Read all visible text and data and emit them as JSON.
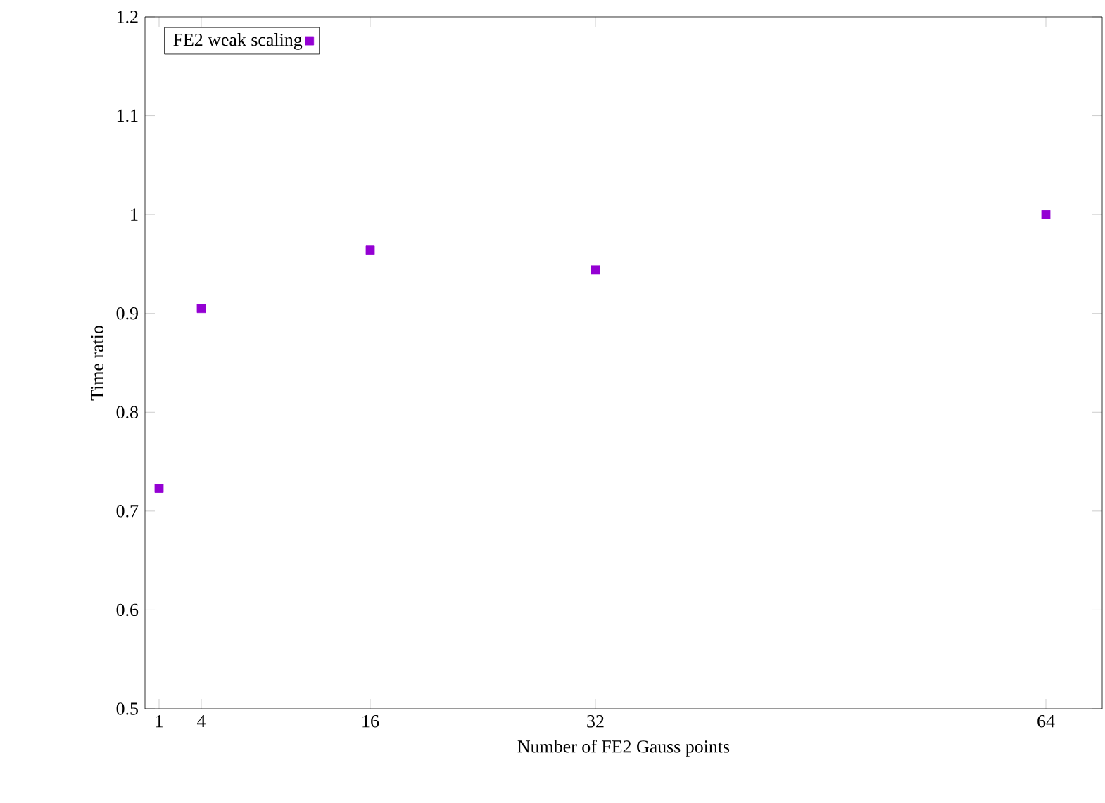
{
  "chart_data": {
    "type": "scatter",
    "xlabel": "Number of FE2 Gauss points",
    "ylabel": "Time ratio",
    "x": [
      1,
      4,
      16,
      32,
      64
    ],
    "series": [
      {
        "name": "FE2 weak scaling",
        "color": "#9400d3",
        "values": [
          0.723,
          0.905,
          0.964,
          0.944,
          1.0
        ]
      }
    ],
    "xlim": [
      0,
      68
    ],
    "ylim": [
      0.5,
      1.2
    ],
    "xticks": [
      1,
      4,
      16,
      32,
      64
    ],
    "yticks": [
      0.5,
      0.6,
      0.7,
      0.8,
      0.9,
      1,
      1.1,
      1.2
    ],
    "marker": "square",
    "legend": "top left",
    "grid": false
  }
}
